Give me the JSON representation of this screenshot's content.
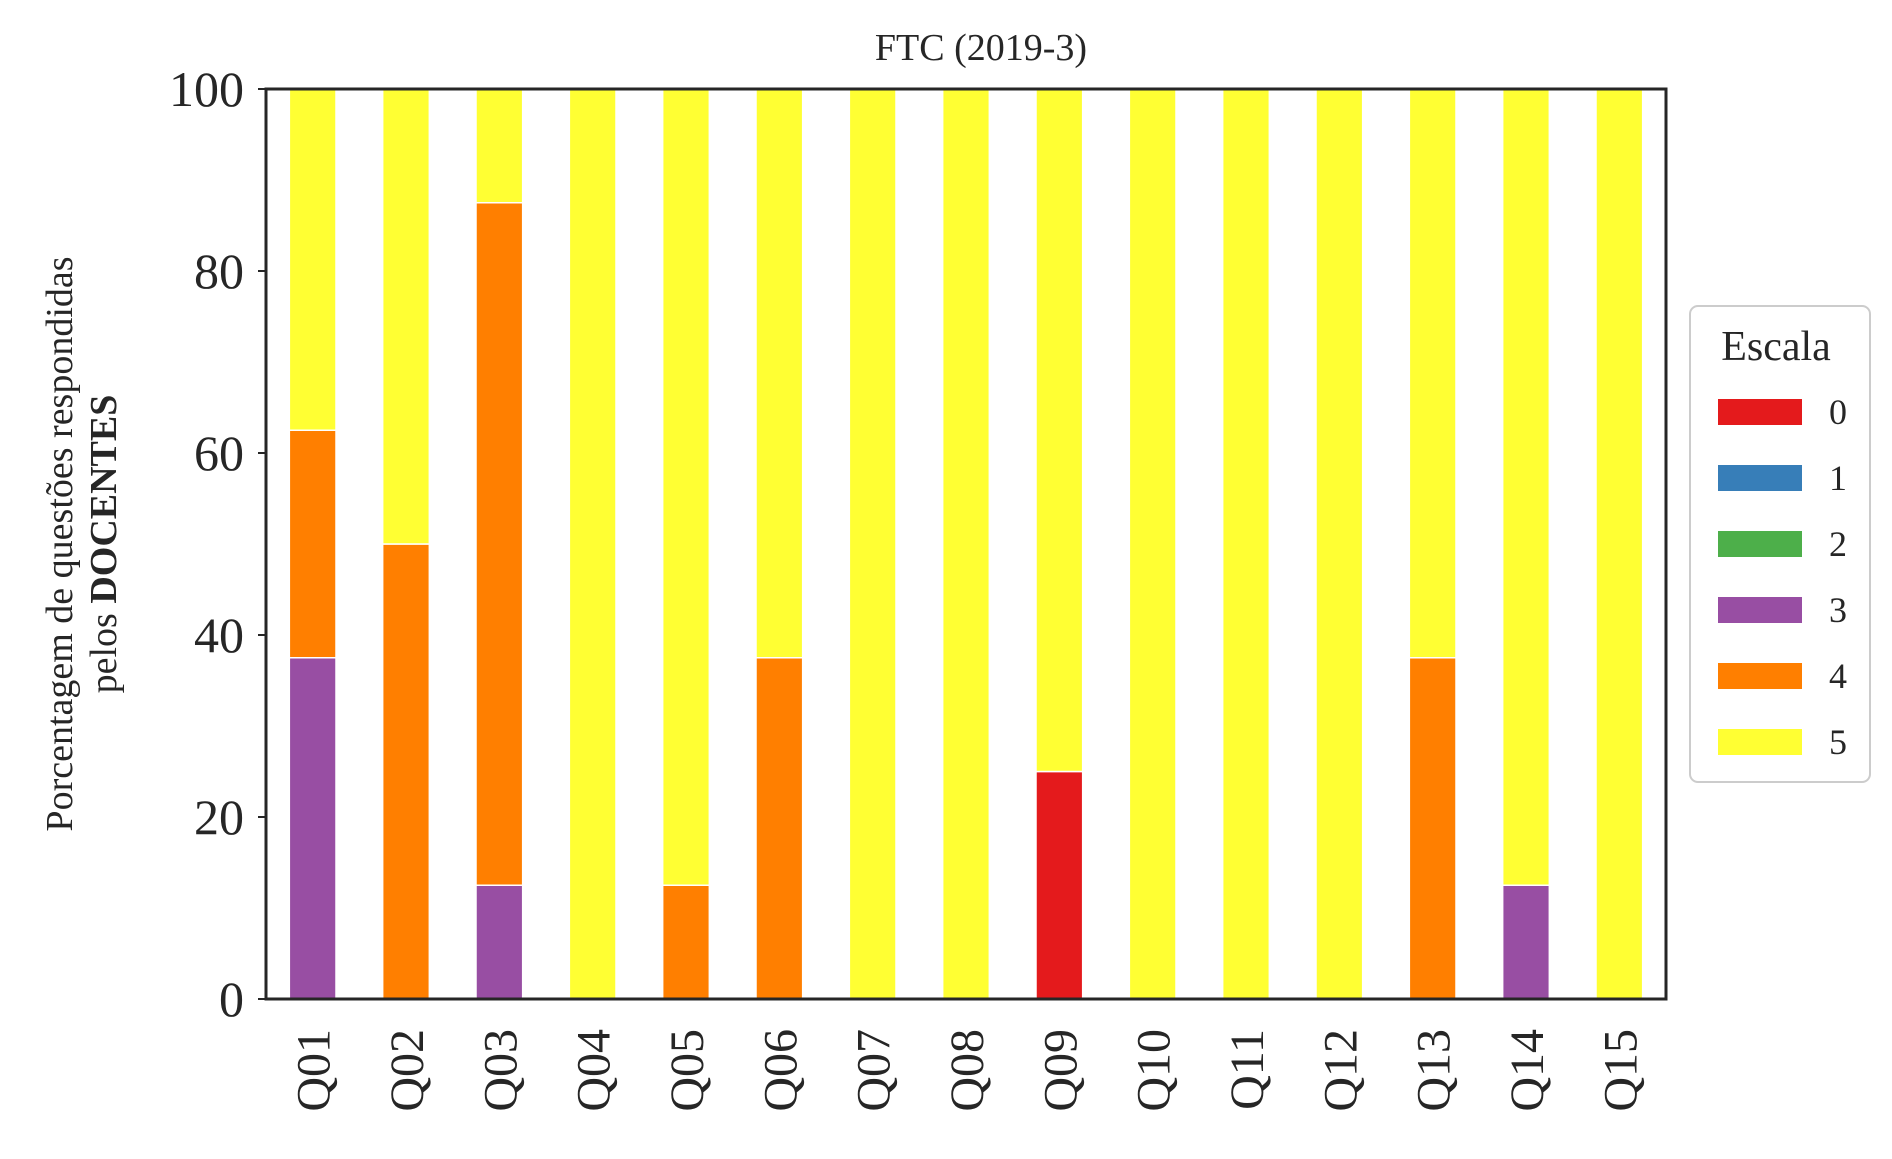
{
  "chart_data": {
    "type": "bar",
    "stacked": true,
    "title": "FTC (2019-3)",
    "ylabel_line1": "Porcentagem de questões respondidas",
    "ylabel_line2_prefix": "pelos ",
    "ylabel_line2_bold": "DOCENTES",
    "xlabel": "",
    "ylim": [
      0,
      100
    ],
    "yticks": [
      "0",
      "20",
      "40",
      "60",
      "80",
      "100"
    ],
    "grid": false,
    "categories": [
      "Q01",
      "Q02",
      "Q03",
      "Q04",
      "Q05",
      "Q06",
      "Q07",
      "Q08",
      "Q09",
      "Q10",
      "Q11",
      "Q12",
      "Q13",
      "Q14",
      "Q15"
    ],
    "legend": {
      "title": "Escala",
      "placement": "right"
    },
    "series": [
      {
        "name": "0",
        "color": "#e41a1c",
        "values": [
          0,
          0,
          0,
          0,
          0,
          0,
          0,
          0,
          25,
          0,
          0,
          0,
          0,
          0,
          0
        ]
      },
      {
        "name": "1",
        "color": "#377eb8",
        "values": [
          0,
          0,
          0,
          0,
          0,
          0,
          0,
          0,
          0,
          0,
          0,
          0,
          0,
          0,
          0
        ]
      },
      {
        "name": "2",
        "color": "#4daf4a",
        "values": [
          0,
          0,
          0,
          0,
          0,
          0,
          0,
          0,
          0,
          0,
          0,
          0,
          0,
          0,
          0
        ]
      },
      {
        "name": "3",
        "color": "#984ea3",
        "values": [
          37.5,
          0,
          12.5,
          0,
          0,
          0,
          0,
          0,
          0,
          0,
          0,
          0,
          0,
          12.5,
          0
        ]
      },
      {
        "name": "4",
        "color": "#ff7f00",
        "values": [
          25,
          50,
          75,
          0,
          12.5,
          37.5,
          0,
          0,
          0,
          0,
          0,
          0,
          37.5,
          0,
          0
        ]
      },
      {
        "name": "5",
        "color": "#ffff33",
        "values": [
          37.5,
          50,
          12.5,
          100,
          87.5,
          62.5,
          100,
          100,
          75,
          100,
          100,
          100,
          62.5,
          87.5,
          100
        ]
      }
    ]
  }
}
